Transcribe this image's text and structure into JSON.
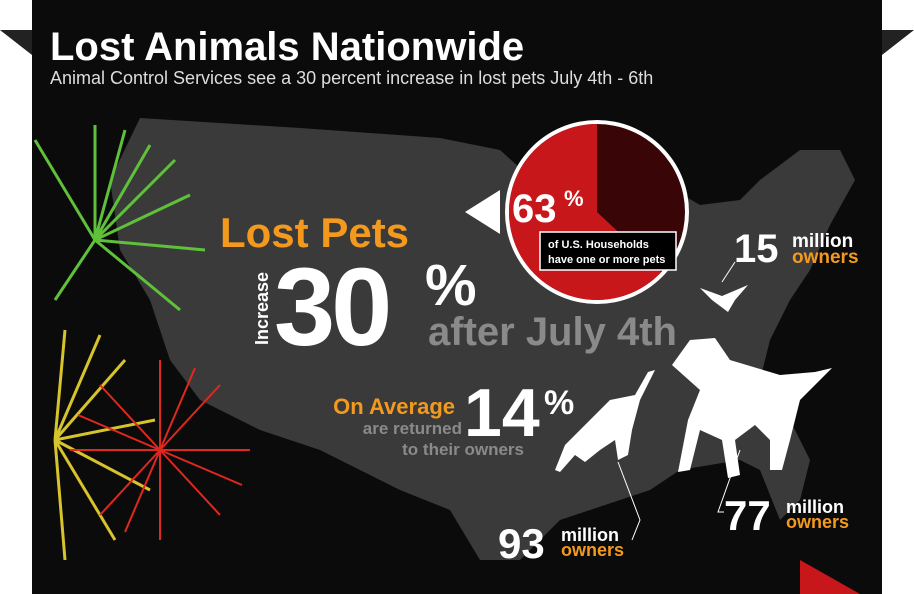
{
  "header": {
    "title": "Lost Animals Nationwide",
    "subtitle": "Animal Control Services see a 30 percent increase in lost pets July 4th - 6th"
  },
  "pie": {
    "value": 63,
    "unit": "%",
    "caption": [
      "of U.S. Households",
      "have one or more pets"
    ]
  },
  "lost_pets": {
    "heading": "Lost Pets",
    "verb": "Increase",
    "number": "30",
    "unit": "%",
    "suffix": "after July 4th"
  },
  "returned": {
    "heading": "On Average",
    "number": "14",
    "unit": "%",
    "text": [
      "are returned",
      "to their owners"
    ]
  },
  "birds": {
    "number": "15",
    "scale": "million",
    "label": "owners"
  },
  "cats": {
    "number": "93",
    "scale": "million",
    "label": "owners"
  },
  "dogs": {
    "number": "77",
    "scale": "million",
    "label": "owners"
  }
}
